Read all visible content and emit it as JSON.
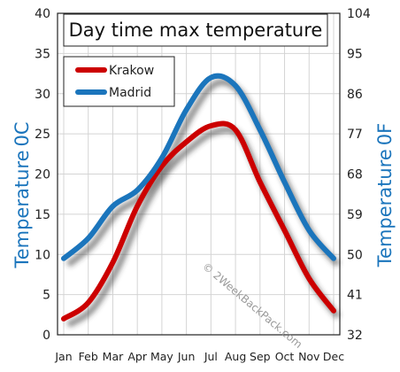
{
  "chart_data": {
    "type": "line",
    "title": "Day time max temperature",
    "categories": [
      "Jan",
      "Feb",
      "Mar",
      "Apr",
      "May",
      "Jun",
      "Jul",
      "Aug",
      "Sep",
      "Oct",
      "Nov",
      "Dec"
    ],
    "series": [
      {
        "name": "Krakow",
        "color": "#cc0000",
        "values": [
          2,
          4,
          9,
          16,
          21,
          24,
          26,
          25.5,
          19,
          13,
          7,
          3
        ]
      },
      {
        "name": "Madrid",
        "color": "#1b75bc",
        "values": [
          9.5,
          12,
          16,
          18,
          22,
          28,
          32,
          31,
          25.5,
          19,
          13,
          9.5
        ]
      }
    ],
    "y_left": {
      "label": "Temperature",
      "unit": "0C",
      "min": 0,
      "max": 40,
      "ticks": [
        0,
        5,
        10,
        15,
        20,
        25,
        30,
        35,
        40
      ]
    },
    "y_right": {
      "label": "Temperature",
      "unit": "0F",
      "ticks": [
        32,
        41,
        50,
        59,
        68,
        77,
        86,
        95,
        104
      ]
    },
    "grid": true,
    "legend_position": "top-left",
    "watermark": "© 2WeekBackPack.com"
  }
}
